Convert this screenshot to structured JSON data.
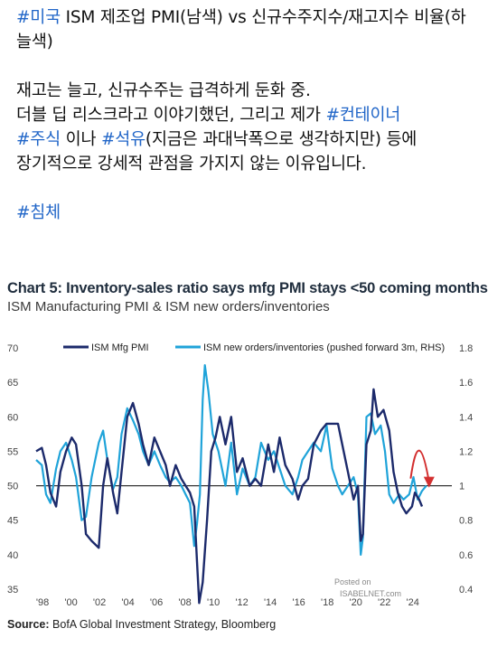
{
  "post": {
    "headline_tag": "#미국",
    "headline_text": " ISM 제조업 PMI(남색) vs 신규수주지수/재고지수 비율(하늘색)",
    "line1": "재고는 늘고, 신규수주는 급격하게 둔화 중.",
    "line2_text": "더블 딥 리스크라고 이야기했던, 그리고 제가 ",
    "line2_tag": "#컨테이너",
    "line3_tag1": "#주식",
    "line3_text1": " 이나 ",
    "line3_tag2": "#석유",
    "line3_text2": "(지금은 과대낙폭으로 생각하지만) 등에",
    "line4": "장기적으로 강세적 관점을 가지지 않는 이유입니다.",
    "footer_tag": "#침체"
  },
  "chart_data": {
    "type": "line",
    "title": "Chart 5: Inventory-sales ratio says mfg PMI stays <50 coming months",
    "subtitle": "ISM Manufacturing PMI & ISM new orders/inventories",
    "source_label": "Source:",
    "source_text": "BofA Global Investment Strategy, Bloomberg",
    "watermark_line1": "Posted on",
    "watermark_line2": "ISABELNET.com",
    "legend_placement": "top",
    "grid": false,
    "x_ticks": [
      "'98",
      "'00",
      "'02",
      "'04",
      "'06",
      "'08",
      "'10",
      "'12",
      "'14",
      "'16",
      "'18",
      "'20",
      "'22",
      "'24"
    ],
    "xlim": [
      1997.5,
      2025.3
    ],
    "y_left": {
      "ylim": [
        35,
        70
      ],
      "ticks": [
        35,
        40,
        45,
        50,
        55,
        60,
        65,
        70
      ]
    },
    "y_right": {
      "ylim": [
        0.4,
        1.8
      ],
      "ticks": [
        "0.4",
        "0.6",
        "0.8",
        "1",
        "1.2",
        "1.4",
        "1.6",
        "1.8"
      ]
    },
    "reference_line": {
      "axis": "left",
      "value": 50
    },
    "series": [
      {
        "name": "ISM Mfg PMI",
        "axis": "left",
        "color": "#1c2a6b",
        "points": [
          [
            1997.5,
            55
          ],
          [
            1997.9,
            55.5
          ],
          [
            1998.2,
            53
          ],
          [
            1998.5,
            49
          ],
          [
            1998.9,
            47
          ],
          [
            1999.2,
            52
          ],
          [
            1999.6,
            55
          ],
          [
            2000.0,
            57
          ],
          [
            2000.3,
            56
          ],
          [
            2000.7,
            50
          ],
          [
            2001.0,
            43
          ],
          [
            2001.4,
            42
          ],
          [
            2001.9,
            41
          ],
          [
            2002.2,
            50
          ],
          [
            2002.5,
            54
          ],
          [
            2002.9,
            49
          ],
          [
            2003.2,
            46
          ],
          [
            2003.5,
            52
          ],
          [
            2003.9,
            60
          ],
          [
            2004.3,
            62
          ],
          [
            2004.7,
            59
          ],
          [
            2005.0,
            56
          ],
          [
            2005.4,
            53
          ],
          [
            2005.8,
            57
          ],
          [
            2006.2,
            55
          ],
          [
            2006.6,
            53
          ],
          [
            2006.9,
            50
          ],
          [
            2007.3,
            53
          ],
          [
            2007.7,
            51
          ],
          [
            2008.0,
            50
          ],
          [
            2008.3,
            49
          ],
          [
            2008.6,
            47
          ],
          [
            2008.8,
            39
          ],
          [
            2008.95,
            33
          ],
          [
            2009.2,
            36
          ],
          [
            2009.5,
            45
          ],
          [
            2009.8,
            55
          ],
          [
            2010.1,
            57
          ],
          [
            2010.4,
            60
          ],
          [
            2010.8,
            56
          ],
          [
            2011.2,
            60
          ],
          [
            2011.6,
            52
          ],
          [
            2012.0,
            54
          ],
          [
            2012.5,
            50
          ],
          [
            2012.9,
            51
          ],
          [
            2013.3,
            50
          ],
          [
            2013.8,
            56
          ],
          [
            2014.2,
            52
          ],
          [
            2014.6,
            57
          ],
          [
            2015.0,
            53
          ],
          [
            2015.5,
            51
          ],
          [
            2015.9,
            48
          ],
          [
            2016.2,
            50
          ],
          [
            2016.6,
            51
          ],
          [
            2017.0,
            56
          ],
          [
            2017.5,
            58
          ],
          [
            2017.9,
            59
          ],
          [
            2018.3,
            59
          ],
          [
            2018.7,
            59
          ],
          [
            2019.0,
            56
          ],
          [
            2019.4,
            52
          ],
          [
            2019.8,
            48
          ],
          [
            2020.1,
            50
          ],
          [
            2020.3,
            42
          ],
          [
            2020.45,
            43
          ],
          [
            2020.7,
            56
          ],
          [
            2021.0,
            58
          ],
          [
            2021.2,
            64
          ],
          [
            2021.5,
            60
          ],
          [
            2021.9,
            61
          ],
          [
            2022.3,
            58
          ],
          [
            2022.6,
            52
          ],
          [
            2022.9,
            49
          ],
          [
            2023.2,
            47
          ],
          [
            2023.5,
            46
          ],
          [
            2023.9,
            47
          ],
          [
            2024.1,
            49
          ],
          [
            2024.4,
            48
          ],
          [
            2024.6,
            47
          ]
        ]
      },
      {
        "name": "ISM new orders/inventories (pushed forward 3m, RHS)",
        "axis": "right",
        "color": "#1fa3d9",
        "points": [
          [
            1997.5,
            1.15
          ],
          [
            1997.9,
            1.12
          ],
          [
            1998.2,
            0.95
          ],
          [
            1998.5,
            0.9
          ],
          [
            1998.9,
            1.1
          ],
          [
            1999.2,
            1.2
          ],
          [
            1999.6,
            1.25
          ],
          [
            2000.0,
            1.15
          ],
          [
            2000.3,
            1.05
          ],
          [
            2000.7,
            0.8
          ],
          [
            2001.0,
            0.82
          ],
          [
            2001.4,
            1.05
          ],
          [
            2001.9,
            1.25
          ],
          [
            2002.2,
            1.32
          ],
          [
            2002.5,
            1.15
          ],
          [
            2002.9,
            0.98
          ],
          [
            2003.2,
            1.05
          ],
          [
            2003.5,
            1.3
          ],
          [
            2003.9,
            1.45
          ],
          [
            2004.3,
            1.38
          ],
          [
            2004.7,
            1.3
          ],
          [
            2005.0,
            1.2
          ],
          [
            2005.4,
            1.12
          ],
          [
            2005.8,
            1.2
          ],
          [
            2006.2,
            1.12
          ],
          [
            2006.6,
            1.05
          ],
          [
            2006.9,
            1.02
          ],
          [
            2007.3,
            1.05
          ],
          [
            2007.7,
            1.0
          ],
          [
            2008.0,
            0.95
          ],
          [
            2008.3,
            0.9
          ],
          [
            2008.6,
            0.65
          ],
          [
            2008.8,
            0.78
          ],
          [
            2009.0,
            0.95
          ],
          [
            2009.2,
            1.5
          ],
          [
            2009.35,
            1.7
          ],
          [
            2009.6,
            1.55
          ],
          [
            2009.9,
            1.3
          ],
          [
            2010.3,
            1.2
          ],
          [
            2010.8,
            1.0
          ],
          [
            2011.2,
            1.25
          ],
          [
            2011.6,
            0.95
          ],
          [
            2012.0,
            1.1
          ],
          [
            2012.5,
            1.0
          ],
          [
            2012.9,
            1.05
          ],
          [
            2013.3,
            1.25
          ],
          [
            2013.8,
            1.15
          ],
          [
            2014.2,
            1.2
          ],
          [
            2014.6,
            1.1
          ],
          [
            2015.0,
            1.0
          ],
          [
            2015.5,
            0.95
          ],
          [
            2015.9,
            1.05
          ],
          [
            2016.2,
            1.15
          ],
          [
            2016.6,
            1.2
          ],
          [
            2017.0,
            1.25
          ],
          [
            2017.5,
            1.2
          ],
          [
            2017.9,
            1.35
          ],
          [
            2018.3,
            1.1
          ],
          [
            2018.7,
            1.0
          ],
          [
            2019.0,
            0.95
          ],
          [
            2019.4,
            1.0
          ],
          [
            2019.8,
            1.05
          ],
          [
            2020.1,
            0.95
          ],
          [
            2020.3,
            0.6
          ],
          [
            2020.45,
            0.7
          ],
          [
            2020.7,
            1.4
          ],
          [
            2021.0,
            1.42
          ],
          [
            2021.3,
            1.3
          ],
          [
            2021.7,
            1.35
          ],
          [
            2022.0,
            1.2
          ],
          [
            2022.3,
            0.95
          ],
          [
            2022.6,
            0.9
          ],
          [
            2023.0,
            0.95
          ],
          [
            2023.3,
            0.92
          ],
          [
            2023.7,
            0.95
          ],
          [
            2024.0,
            1.05
          ],
          [
            2024.3,
            0.92
          ],
          [
            2024.6,
            0.97
          ],
          [
            2024.9,
            1.0
          ]
        ]
      }
    ],
    "annotations": [
      {
        "type": "curved-arrow",
        "color": "#d32f2f",
        "x_range": [
          2023.8,
          2025.1
        ]
      }
    ]
  }
}
